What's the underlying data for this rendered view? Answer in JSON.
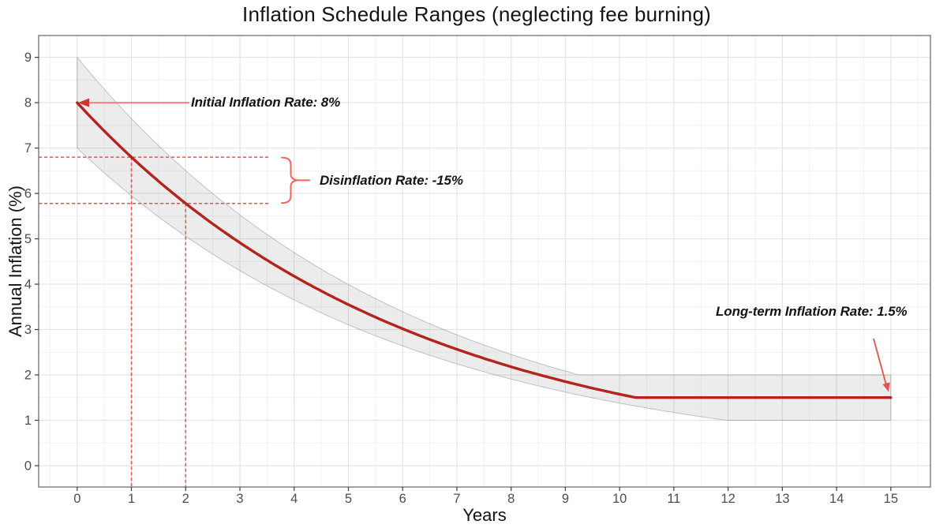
{
  "chart_data": {
    "type": "line",
    "title": "Inflation Schedule Ranges (neglecting fee burning)",
    "xlabel": "Years",
    "ylabel": "Annual Inflation (%)",
    "x_ticks": [
      0,
      1,
      2,
      3,
      4,
      5,
      6,
      7,
      8,
      9,
      10,
      11,
      12,
      13,
      14,
      15
    ],
    "y_ticks": [
      0,
      1,
      2,
      3,
      4,
      5,
      6,
      7,
      8,
      9
    ],
    "xlim": [
      -0.71,
      15.73
    ],
    "ylim": [
      -0.47,
      9.48
    ],
    "grid": {
      "major": true,
      "minor": true,
      "minor_step": 0.5
    },
    "legend": "none",
    "model": {
      "initial_inflation_pct": 8,
      "disinflation_rate_pct": -15,
      "longterm_inflation_pct": 1.5,
      "band_upper_initial_pct": 9,
      "band_lower_initial_pct": 7,
      "band_upper_floor_pct": 2.0,
      "band_lower_floor_pct": 1.0
    },
    "x": [
      0,
      1,
      2,
      3,
      4,
      5,
      6,
      7,
      8,
      9,
      10,
      11,
      12,
      13,
      14,
      15
    ],
    "series": [
      {
        "name": "expected_schedule",
        "values": [
          8,
          6.8,
          5.78,
          4.91,
          4.18,
          3.55,
          3.02,
          2.57,
          2.18,
          1.85,
          1.58,
          1.5,
          1.5,
          1.5,
          1.5,
          1.5
        ]
      },
      {
        "name": "upper_range",
        "values": [
          9,
          7.65,
          6.5,
          5.53,
          4.7,
          3.99,
          3.39,
          2.89,
          2.45,
          2.09,
          2,
          2,
          2,
          2,
          2,
          2
        ]
      },
      {
        "name": "lower_range",
        "values": [
          7,
          5.95,
          5.06,
          4.3,
          3.65,
          3.11,
          2.64,
          2.24,
          1.91,
          1.62,
          1.38,
          1.17,
          1,
          1,
          1,
          1
        ]
      }
    ],
    "annotations": {
      "initial": {
        "label": "Initial Inflation Rate: 8%",
        "value_pct": 8,
        "at_year": 0
      },
      "disinflation": {
        "label": "Disinflation Rate: -15%",
        "upper_guide_pct": 6.8,
        "lower_guide_pct": 5.78,
        "guide_years": [
          1,
          2
        ]
      },
      "longterm": {
        "label": "Long-term Inflation Rate: 1.5%",
        "value_pct": 1.5,
        "at_year": 15
      }
    },
    "colors": {
      "curve": "#B5231F",
      "annotation_red": "#EE5048",
      "arrow_line_light": "#F0837B",
      "arrow_head": "#CE372E",
      "brace_red": "#F2635C",
      "band_edge": "#ABABAB",
      "grid_major": "#E4E4E4",
      "grid_minor": "#F2F2F2",
      "panel_border": "#6F6F6F",
      "tick_mark": "#3C3C3C",
      "tick_label": "#4D4D4D",
      "text": "#141414"
    }
  }
}
